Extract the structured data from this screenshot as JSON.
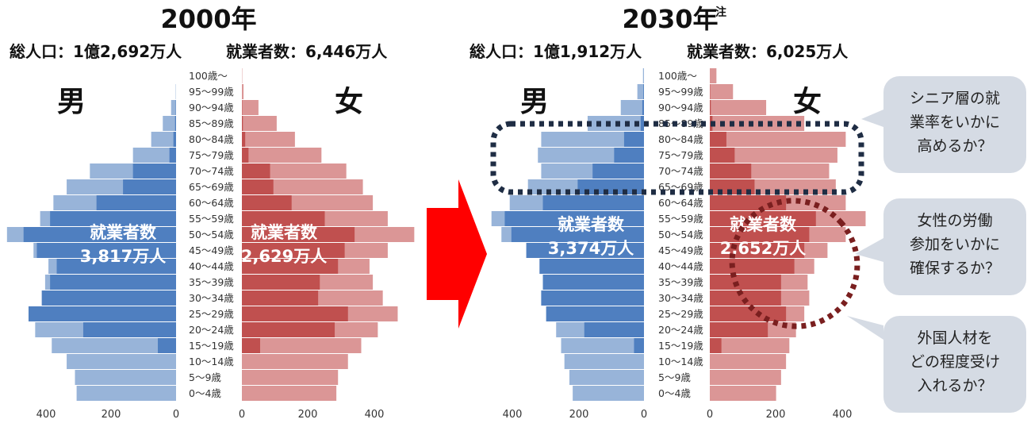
{
  "colors": {
    "male_total": "#98b4d9",
    "male_employed": "#4f7fc0",
    "female_total": "#db9696",
    "female_employed": "#c0504f",
    "arrow": "#ff0000",
    "bubble": "#d5dbe4",
    "dotted_navy": "#1f2d44",
    "dotted_maroon": "#7a1f1f"
  },
  "age_groups": [
    "100歳〜",
    "95〜99歳",
    "90〜94歳",
    "85〜89歳",
    "80〜84歳",
    "75〜79歳",
    "70〜74歳",
    "65〜69歳",
    "60〜64歳",
    "55〜59歳",
    "50〜54歳",
    "45〜49歳",
    "40〜44歳",
    "35〜39歳",
    "30〜34歳",
    "25〜29歳",
    "20〜24歳",
    "15〜19歳",
    "10〜14歳",
    "5〜9歳",
    "0〜4歳"
  ],
  "chart_data": [
    {
      "type": "bar",
      "orientation": "horizontal",
      "title": "2000年",
      "subtitle_population": "総人口：1億2,692万人",
      "subtitle_employed": "就業者数：6,446万人",
      "left_label": "男",
      "right_label": "女",
      "male_employed_label": "就業者数",
      "male_employed_value": "3,817万人",
      "female_employed_label": "就業者数",
      "female_employed_value": "2,629万人",
      "x_ticks_left": [
        "400",
        "200",
        "0"
      ],
      "x_ticks_right": [
        "0",
        "200",
        "400"
      ],
      "xlim": [
        0,
        500
      ],
      "series": [
        {
          "name": "男",
          "values": [
            0,
            1,
            15,
            40,
            75,
            130,
            260,
            330,
            370,
            410,
            510,
            430,
            385,
            395,
            405,
            445,
            425,
            375,
            330,
            305,
            300
          ]
        },
        {
          "name": "男 就業者数",
          "values": [
            0,
            0,
            1,
            3,
            8,
            20,
            130,
            160,
            240,
            380,
            460,
            420,
            360,
            380,
            405,
            445,
            280,
            55,
            0,
            0,
            0
          ]
        },
        {
          "name": "女",
          "values": [
            1,
            5,
            50,
            105,
            160,
            240,
            315,
            365,
            395,
            440,
            520,
            440,
            385,
            395,
            425,
            470,
            410,
            360,
            320,
            290,
            285
          ]
        },
        {
          "name": "女 就業者数",
          "values": [
            0,
            0,
            1,
            3,
            10,
            20,
            85,
            95,
            150,
            250,
            340,
            310,
            290,
            235,
            230,
            320,
            280,
            55,
            0,
            0,
            0
          ]
        }
      ]
    },
    {
      "type": "bar",
      "orientation": "horizontal",
      "title": "2030年",
      "title_note": "注",
      "subtitle_population": "総人口：1億1,912万人",
      "subtitle_employed": "就業者数：6,025万人",
      "left_label": "男",
      "right_label": "女",
      "male_employed_label": "就業者数",
      "male_employed_value": "3,374万人",
      "female_employed_label": "就業者数",
      "female_employed_value": "2,652万人",
      "x_ticks_left": [
        "400",
        "200",
        "0"
      ],
      "x_ticks_right": [
        "0",
        "200",
        "400"
      ],
      "xlim": [
        0,
        500
      ],
      "series": [
        {
          "name": "男",
          "values": [
            3,
            20,
            70,
            170,
            310,
            320,
            310,
            350,
            405,
            460,
            430,
            355,
            315,
            305,
            310,
            295,
            265,
            250,
            240,
            225,
            215
          ]
        },
        {
          "name": "男 就業者数",
          "values": [
            0,
            2,
            5,
            10,
            60,
            90,
            155,
            200,
            305,
            420,
            400,
            355,
            315,
            305,
            310,
            295,
            180,
            30,
            0,
            0,
            0
          ]
        },
        {
          "name": "女",
          "values": [
            20,
            70,
            170,
            285,
            410,
            385,
            360,
            380,
            410,
            470,
            410,
            355,
            315,
            295,
            300,
            285,
            260,
            240,
            230,
            215,
            200
          ]
        },
        {
          "name": "女 就業者数",
          "values": [
            0,
            1,
            3,
            8,
            50,
            75,
            125,
            135,
            230,
            320,
            300,
            285,
            255,
            215,
            215,
            230,
            175,
            35,
            0,
            0,
            0
          ]
        }
      ]
    }
  ],
  "bubbles": [
    {
      "lines": [
        "シニア層の就",
        "業率をいかに",
        "高めるか？"
      ]
    },
    {
      "lines": [
        "女性の労働",
        "参加をいかに",
        "確保するか？"
      ]
    },
    {
      "lines": [
        "外国人材を",
        "どの程度受け",
        "入れるか？"
      ]
    }
  ]
}
